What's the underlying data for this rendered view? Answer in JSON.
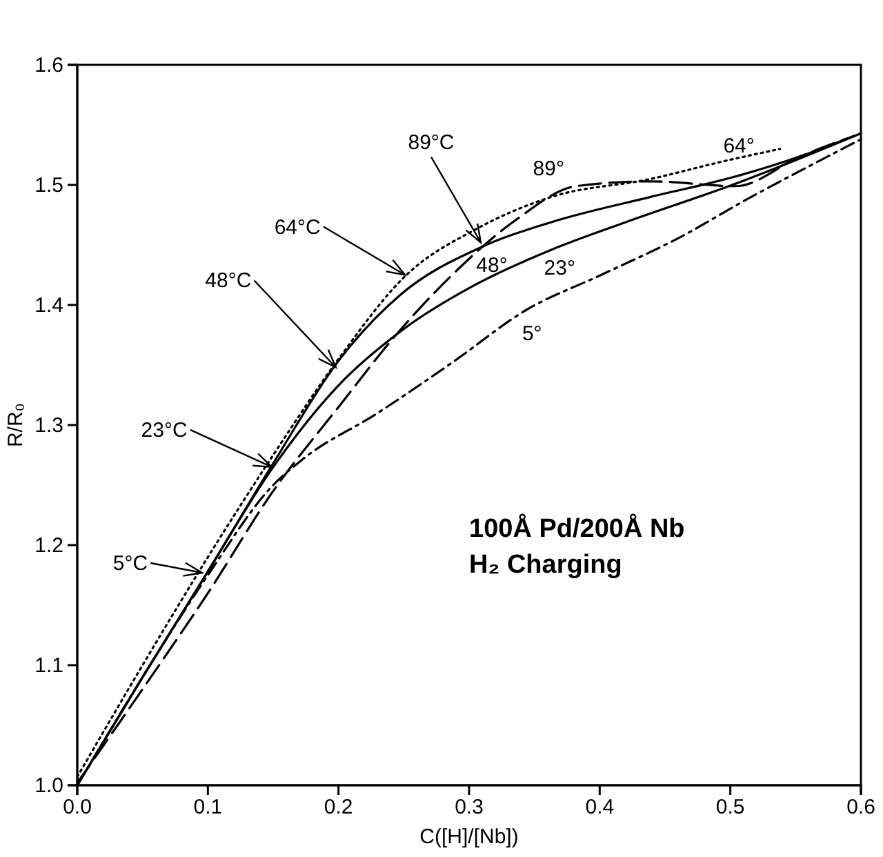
{
  "chart_data": {
    "type": "line",
    "xlabel": "C([H]/[Nb])",
    "ylabel": "R/R₀",
    "xlim": [
      0,
      0.6
    ],
    "xticks": [
      {
        "value": 0,
        "label": "0.0"
      },
      0.1,
      0.2,
      0.3,
      0.4,
      0.5,
      0.6
    ],
    "ylim": [
      1,
      1.6
    ],
    "yticks": [
      {
        "value": 1,
        "label": "1.0"
      },
      1.1,
      1.2,
      1.3,
      1.4,
      1.5,
      1.6
    ],
    "grid": false,
    "marker": "none",
    "series": [
      {
        "name": "5°",
        "color": "#000000",
        "line_style": "dashdot",
        "x": [
          0,
          0.05,
          0.1,
          0.15,
          0.172,
          0.23,
          0.287,
          0.344,
          0.401,
          0.459,
          0.516,
          0.554,
          0.6
        ],
        "values": [
          1,
          1.09,
          1.175,
          1.25,
          1.271,
          1.31,
          1.352,
          1.396,
          1.425,
          1.455,
          1.49,
          1.512,
          1.538
        ]
      },
      {
        "name": "23°",
        "color": "#000000",
        "line_style": "solid",
        "x": [
          0,
          0.05,
          0.1,
          0.15,
          0.2,
          0.25,
          0.305,
          0.363,
          0.42,
          0.504,
          0.6
        ],
        "values": [
          1,
          1.09,
          1.178,
          1.265,
          1.333,
          1.38,
          1.417,
          1.446,
          1.469,
          1.501,
          1.543
        ]
      },
      {
        "name": "48°",
        "color": "#000000",
        "line_style": "solid",
        "x": [
          0,
          0.05,
          0.1,
          0.15,
          0.199,
          0.248,
          0.309,
          0.363,
          0.439,
          0.504,
          0.554,
          0.595
        ],
        "values": [
          1,
          1.09,
          1.178,
          1.268,
          1.352,
          1.409,
          1.448,
          1.469,
          1.49,
          1.507,
          1.524,
          1.541
        ]
      },
      {
        "name": "64°",
        "color": "#000000",
        "line_style": "dotted",
        "x": [
          0,
          0.05,
          0.1,
          0.15,
          0.2,
          0.252,
          0.305,
          0.363,
          0.439,
          0.496,
          0.538
        ],
        "values": [
          1.007,
          1.1,
          1.19,
          1.275,
          1.355,
          1.425,
          1.463,
          1.49,
          1.505,
          1.52,
          1.53
        ]
      },
      {
        "name": "89°",
        "color": "#000000",
        "line_style": "dashed",
        "x": [
          0,
          0.05,
          0.1,
          0.15,
          0.2,
          0.244,
          0.287,
          0.336,
          0.382,
          0.439,
          0.504,
          0.554,
          0.59
        ],
        "values": [
          1.002,
          1.08,
          1.16,
          1.245,
          1.315,
          1.375,
          1.425,
          1.471,
          1.499,
          1.503,
          1.499,
          1.524,
          1.539
        ]
      }
    ],
    "annotations": [
      {
        "text": "5°C",
        "x": 0.0956,
        "y": 1.177
      },
      {
        "text": "23°C",
        "x": 0.149,
        "y": 1.265
      },
      {
        "text": "48°C",
        "x": 0.198,
        "y": 1.348
      },
      {
        "text": "64°C",
        "x": 0.251,
        "y": 1.425
      },
      {
        "text": "89°C",
        "x": 0.309,
        "y": 1.452
      },
      "100Å Pd/200Å Nb",
      "H₂ Charging"
    ]
  }
}
